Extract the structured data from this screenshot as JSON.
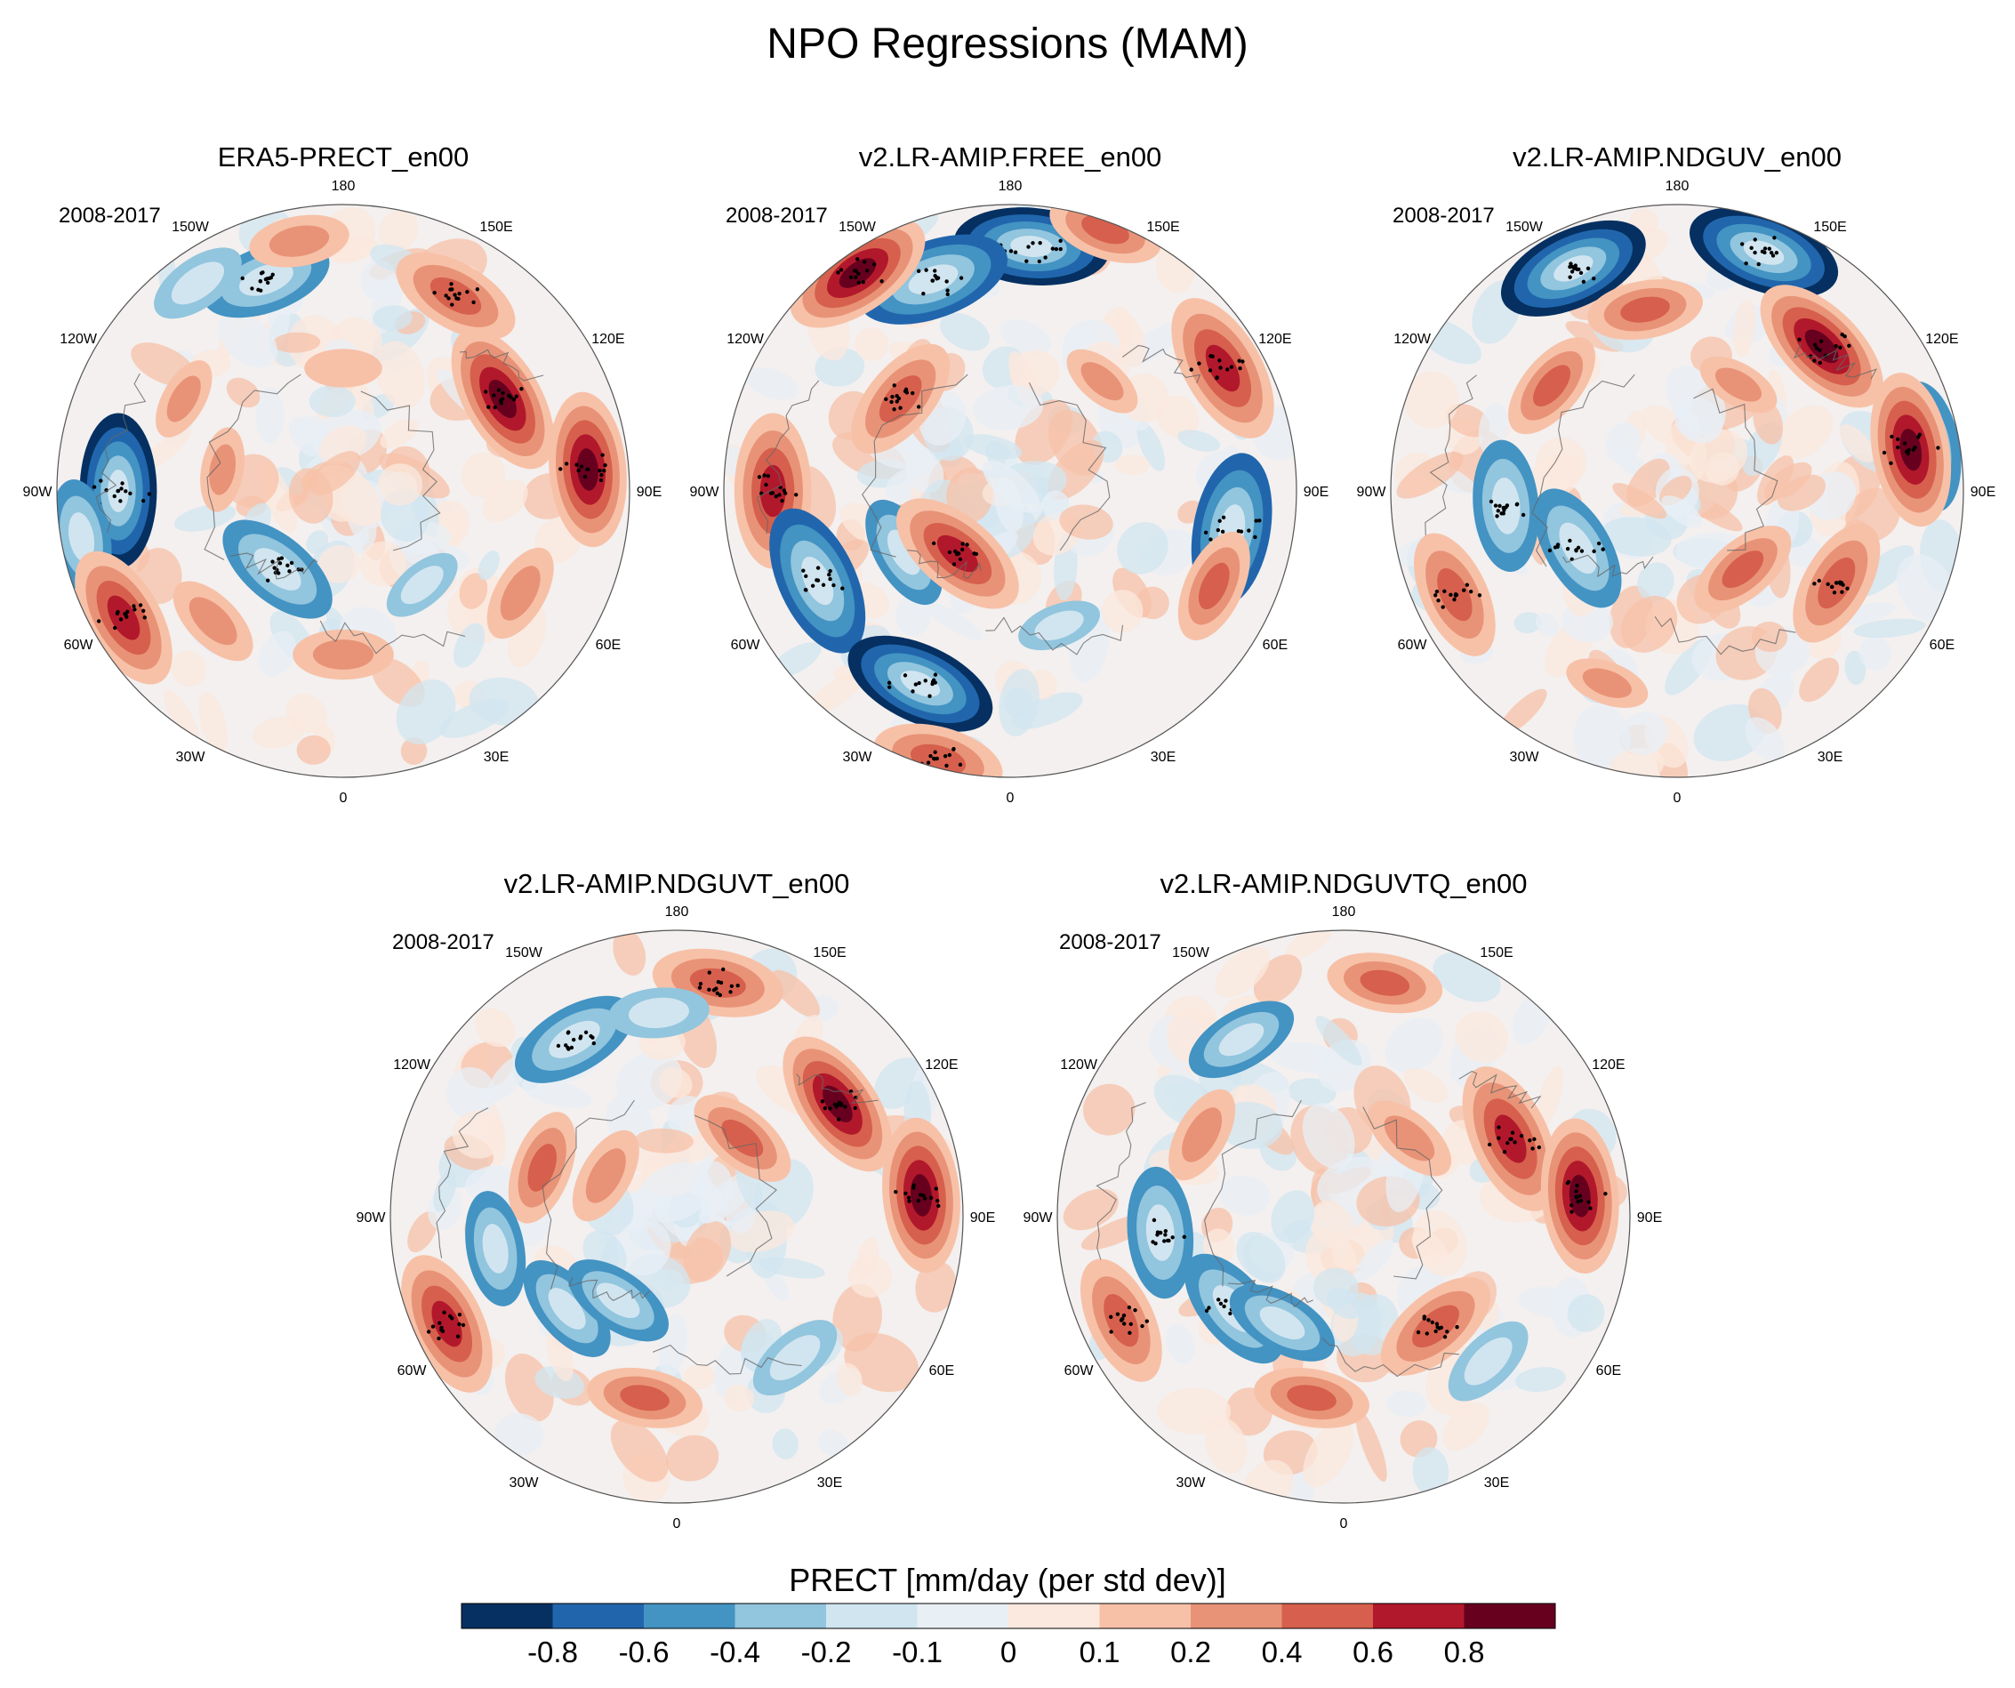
{
  "figure_title": "NPO Regressions (MAM)",
  "colors": {
    "levels": [
      "#053061",
      "#2166ac",
      "#4393c3",
      "#92c5de",
      "#d1e5f0",
      "#e8eff5",
      "#fbe8de",
      "#f7c1a8",
      "#e89377",
      "#d6604d",
      "#b2182b",
      "#67001f"
    ],
    "stipple": "#000000",
    "coast": "#666666",
    "circle": "#555555"
  },
  "lon_labels": [
    "180",
    "150E",
    "120E",
    "90E",
    "60E",
    "30E",
    "0",
    "30W",
    "60W",
    "90W",
    "120W",
    "150W"
  ],
  "chart_data": [
    {
      "type": "heatmap",
      "projection": "north-polar-stereographic",
      "title": "ERA5-PRECT_en00",
      "period": "2008-2017",
      "variable": "PRECT",
      "units": "mm/day (per std dev)",
      "features": [
        {
          "lon": 120,
          "lat": 45,
          "value": 0.85
        },
        {
          "lon": 95,
          "lat": 30,
          "value": 0.9
        },
        {
          "lon": 150,
          "lat": 35,
          "value": 0.5
        },
        {
          "lon": -160,
          "lat": 35,
          "value": -0.5
        },
        {
          "lon": -145,
          "lat": 28,
          "value": -0.3
        },
        {
          "lon": -170,
          "lat": 28,
          "value": 0.3
        },
        {
          "lon": -90,
          "lat": 35,
          "value": -0.8
        },
        {
          "lon": -80,
          "lat": 25,
          "value": -0.4
        },
        {
          "lon": -60,
          "lat": 28,
          "value": 0.6
        },
        {
          "lon": -45,
          "lat": 45,
          "value": 0.3
        },
        {
          "lon": -40,
          "lat": 65,
          "value": -0.5
        },
        {
          "lon": 0,
          "lat": 50,
          "value": 0.3
        },
        {
          "lon": 60,
          "lat": 40,
          "value": 0.3
        },
        {
          "lon": 40,
          "lat": 60,
          "value": -0.2
        },
        {
          "lon": -100,
          "lat": 60,
          "value": 0.2
        },
        {
          "lon": -120,
          "lat": 45,
          "value": 0.2
        },
        {
          "lon": 180,
          "lat": 60,
          "value": 0.15
        }
      ]
    },
    {
      "type": "heatmap",
      "projection": "north-polar-stereographic",
      "title": "v2.LR-AMIP.FREE_en00",
      "period": "2008-2017",
      "variable": "PRECT",
      "units": "mm/day (per std dev)",
      "features": [
        {
          "lon": 175,
          "lat": 30,
          "value": -0.85
        },
        {
          "lon": -160,
          "lat": 35,
          "value": -0.7
        },
        {
          "lon": -145,
          "lat": 25,
          "value": 0.8
        },
        {
          "lon": 160,
          "lat": 22,
          "value": 0.4
        },
        {
          "lon": 120,
          "lat": 30,
          "value": 0.7
        },
        {
          "lon": 80,
          "lat": 35,
          "value": -0.7
        },
        {
          "lon": 65,
          "lat": 35,
          "value": 0.4
        },
        {
          "lon": -90,
          "lat": 32,
          "value": 0.7
        },
        {
          "lon": -65,
          "lat": 38,
          "value": -0.7
        },
        {
          "lon": -25,
          "lat": 38,
          "value": -0.8
        },
        {
          "lon": -15,
          "lat": 22,
          "value": 0.5
        },
        {
          "lon": -60,
          "lat": 60,
          "value": -0.4
        },
        {
          "lon": -40,
          "lat": 70,
          "value": 0.6
        },
        {
          "lon": -130,
          "lat": 55,
          "value": 0.5
        },
        {
          "lon": 140,
          "lat": 55,
          "value": 0.2
        },
        {
          "lon": 20,
          "lat": 55,
          "value": -0.2
        }
      ]
    },
    {
      "type": "heatmap",
      "projection": "north-polar-stereographic",
      "title": "v2.LR-AMIP.NDGUV_en00",
      "period": "2008-2017",
      "variable": "PRECT",
      "units": "mm/day (per std dev)",
      "features": [
        {
          "lon": -155,
          "lat": 30,
          "value": -0.85
        },
        {
          "lon": 160,
          "lat": 28,
          "value": -0.85
        },
        {
          "lon": 135,
          "lat": 40,
          "value": 0.8
        },
        {
          "lon": 100,
          "lat": 28,
          "value": -0.5
        },
        {
          "lon": 100,
          "lat": 32,
          "value": 0.8
        },
        {
          "lon": -170,
          "lat": 45,
          "value": 0.4
        },
        {
          "lon": -130,
          "lat": 50,
          "value": 0.4
        },
        {
          "lon": -85,
          "lat": 48,
          "value": -0.5
        },
        {
          "lon": -65,
          "lat": 30,
          "value": 0.5
        },
        {
          "lon": -60,
          "lat": 62,
          "value": -0.5
        },
        {
          "lon": 60,
          "lat": 45,
          "value": 0.5
        },
        {
          "lon": 40,
          "lat": 65,
          "value": 0.4
        },
        {
          "lon": -20,
          "lat": 40,
          "value": 0.2
        },
        {
          "lon": 150,
          "lat": 60,
          "value": 0.2
        }
      ]
    },
    {
      "type": "heatmap",
      "projection": "north-polar-stereographic",
      "title": "v2.LR-AMIP.NDGUVT_en00",
      "period": "2008-2017",
      "variable": "PRECT",
      "units": "mm/day (per std dev)",
      "features": [
        {
          "lon": 125,
          "lat": 42,
          "value": 0.8
        },
        {
          "lon": 95,
          "lat": 30,
          "value": 0.9
        },
        {
          "lon": 170,
          "lat": 32,
          "value": 0.5
        },
        {
          "lon": -150,
          "lat": 40,
          "value": -0.5
        },
        {
          "lon": -175,
          "lat": 40,
          "value": -0.3
        },
        {
          "lon": -110,
          "lat": 55,
          "value": 0.4
        },
        {
          "lon": -80,
          "lat": 45,
          "value": -0.4
        },
        {
          "lon": -65,
          "lat": 28,
          "value": 0.6
        },
        {
          "lon": -50,
          "lat": 55,
          "value": -0.4
        },
        {
          "lon": -35,
          "lat": 65,
          "value": -0.4
        },
        {
          "lon": -10,
          "lat": 45,
          "value": 0.4
        },
        {
          "lon": 40,
          "lat": 45,
          "value": -0.3
        },
        {
          "lon": 140,
          "lat": 65,
          "value": 0.4
        },
        {
          "lon": -120,
          "lat": 70,
          "value": 0.3
        }
      ]
    },
    {
      "type": "heatmap",
      "projection": "north-polar-stereographic",
      "title": "v2.LR-AMIP.NDGUVTQ_en00",
      "period": "2008-2017",
      "variable": "PRECT",
      "units": "mm/day (per std dev)",
      "features": [
        {
          "lon": 115,
          "lat": 45,
          "value": 0.7
        },
        {
          "lon": 95,
          "lat": 32,
          "value": 0.8
        },
        {
          "lon": 170,
          "lat": 32,
          "value": 0.4
        },
        {
          "lon": -150,
          "lat": 40,
          "value": -0.4
        },
        {
          "lon": -120,
          "lat": 50,
          "value": 0.3
        },
        {
          "lon": -85,
          "lat": 45,
          "value": -0.5
        },
        {
          "lon": -65,
          "lat": 30,
          "value": 0.5
        },
        {
          "lon": -50,
          "lat": 55,
          "value": -0.5
        },
        {
          "lon": -30,
          "lat": 60,
          "value": -0.4
        },
        {
          "lon": -10,
          "lat": 45,
          "value": 0.4
        },
        {
          "lon": 40,
          "lat": 55,
          "value": 0.5
        },
        {
          "lon": 45,
          "lat": 40,
          "value": -0.3
        },
        {
          "lon": 140,
          "lat": 65,
          "value": 0.3
        }
      ]
    }
  ],
  "colorbar": {
    "title": "PRECT [mm/day (per std dev)]",
    "tick_labels": [
      "-0.8",
      "-0.6",
      "-0.4",
      "-0.2",
      "-0.1",
      "0",
      "0.1",
      "0.2",
      "0.4",
      "0.6",
      "0.8"
    ]
  }
}
